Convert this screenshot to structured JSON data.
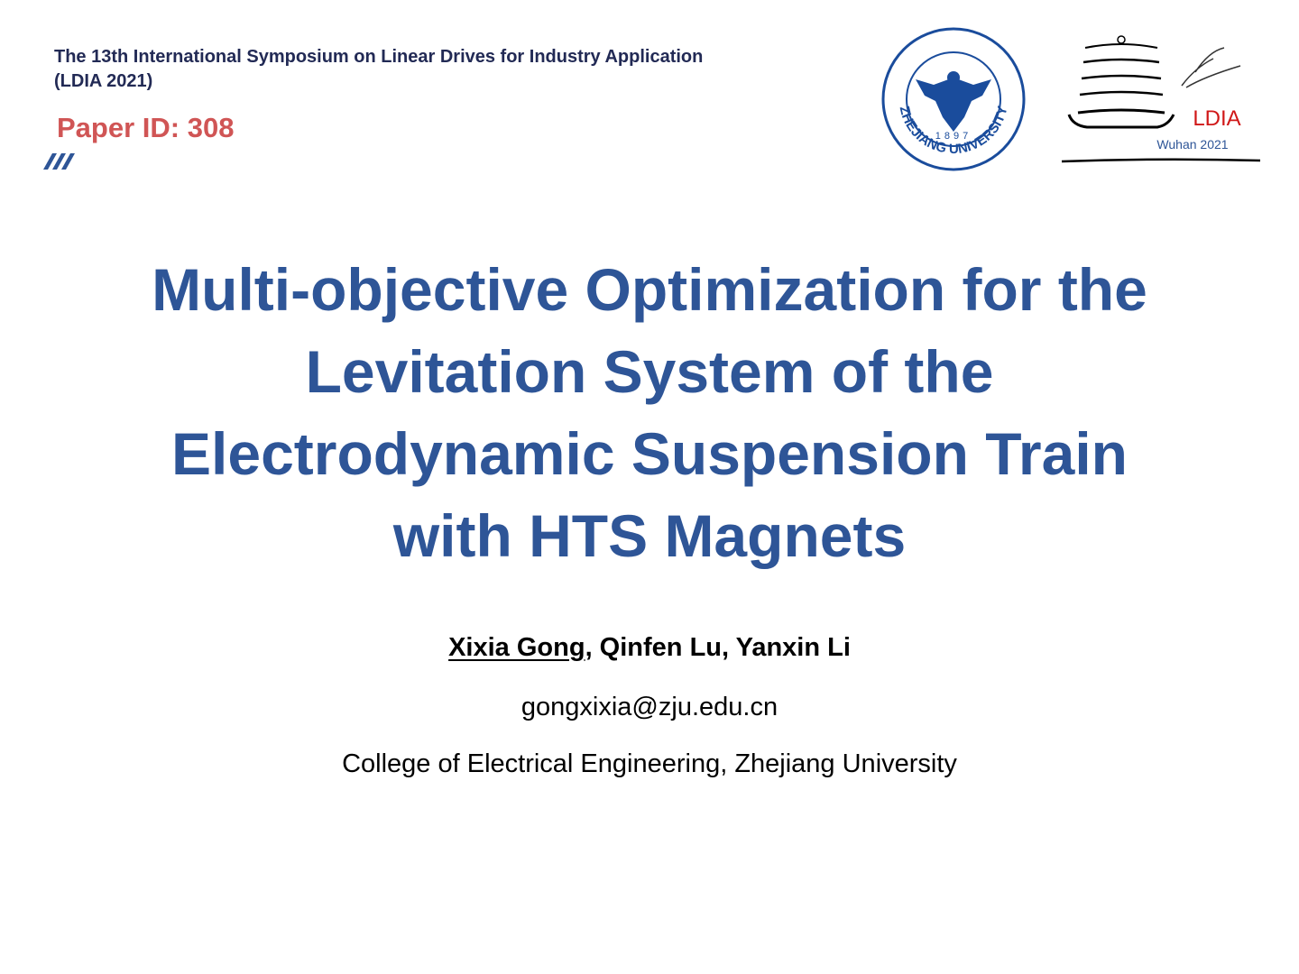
{
  "header": {
    "conference_lines": [
      "The 13th International Symposium on Linear Drives for Industry Application",
      "(LDIA 2021)"
    ],
    "paper_id": "Paper ID: 308"
  },
  "logos": {
    "zju": {
      "name": "ZHEJIANG UNIVERSITY",
      "year": "1897"
    },
    "ldia": {
      "name": "LDIA",
      "place": "Wuhan 2021"
    }
  },
  "title_lines": [
    "Multi-objective Optimization for the",
    "Levitation System of the",
    "Electrodynamic Suspension Train",
    "with HTS Magnets"
  ],
  "authors": {
    "presenter": "Xixia Gong",
    "others": ", Qinfen Lu, Yanxin Li"
  },
  "email": "gongxixia@zju.edu.cn",
  "affiliation": "College of Electrical Engineering, Zhejiang University"
}
